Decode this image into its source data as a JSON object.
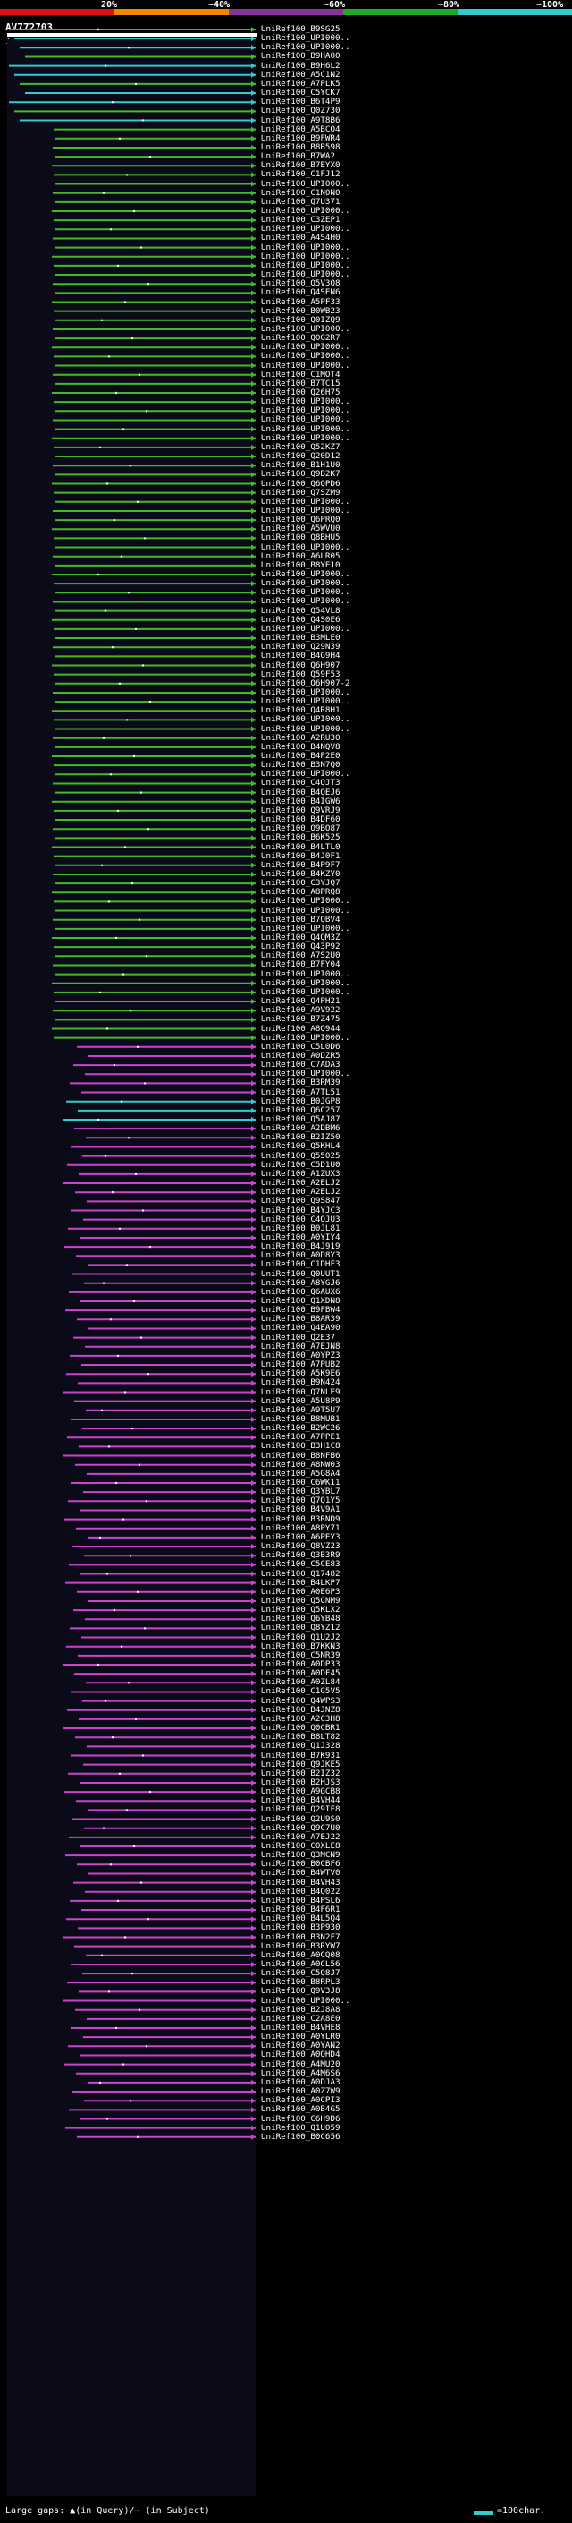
{
  "legend": {
    "labels": [
      "20%",
      "~40%",
      "~60%",
      "~80%",
      "~100%"
    ],
    "colors": {
      "c20": "#dd1111",
      "c40": "#ee8800",
      "c60": "#883399",
      "c80": "#22aa22",
      "c100": "#33cccc"
    }
  },
  "query": {
    "title": "AV772703",
    "start": "1",
    "end": "491"
  },
  "colors": {
    "pink": "#cc44cc",
    "green": "#44bb22",
    "cyan": "#33cccc",
    "purple_dark": "#661a66",
    "green_dark": "#2a5a12"
  },
  "hits": [
    "UniRef100_B9SG25",
    "UniRef100_UPI000..",
    "UniRef100_UPI000..",
    "UniRef100_B9HA00",
    "UniRef100_B9H6L2",
    "UniRef100_A5C1N2",
    "UniRef100_A7PLK5",
    "UniRef100_C5YCK7",
    "UniRef100_B6T4P9",
    "UniRef100_Q0Z730",
    "UniRef100_A9T8B6",
    "UniRef100_A5BCQ4",
    "UniRef100_B9FWR4",
    "UniRef100_B8B598",
    "UniRef100_B7WA2",
    "UniRef100_B7EYX0",
    "UniRef100_C1FJ12",
    "UniRef100_UPI000..",
    "UniRef100_C1N0N0",
    "UniRef100_Q7U371",
    "UniRef100_UPI000..",
    "UniRef100_C3ZEP1",
    "UniRef100_UPI000..",
    "UniRef100_A4S4H0",
    "UniRef100_UPI000..",
    "UniRef100_UPI000..",
    "UniRef100_UPI000..",
    "UniRef100_UPI000..",
    "UniRef100_Q5V3Q8",
    "UniRef100_Q4SEN6",
    "UniRef100_A5PF33",
    "UniRef100_B0WB23",
    "UniRef100_Q0IZQ9",
    "UniRef100_UPI000..",
    "UniRef100_Q0G2R7",
    "UniRef100_UPI000..",
    "UniRef100_UPI000..",
    "UniRef100_UPI000..",
    "UniRef100_C1MOT4",
    "UniRef100_B7TC15",
    "UniRef100_Q26H75",
    "UniRef100_UPI000..",
    "UniRef100_UPI000..",
    "UniRef100_UPI000..",
    "UniRef100_UPI000..",
    "UniRef100_UPI000..",
    "UniRef100_Q52KZ7",
    "UniRef100_Q20D12",
    "UniRef100_B1H1U0",
    "UniRef100_Q9B2K7",
    "UniRef100_Q6QPD6",
    "UniRef100_Q7SZM9",
    "UniRef100_UPI000..",
    "UniRef100_UPI000..",
    "UniRef100_Q6PRQ0",
    "UniRef100_A5WVU0",
    "UniRef100_Q8BHU5",
    "UniRef100_UPI000..",
    "UniRef100_A6LR05",
    "UniRef100_B8YE10",
    "UniRef100_UPI000..",
    "UniRef100_UPI000..",
    "UniRef100_UPI000..",
    "UniRef100_UPI000..",
    "UniRef100_Q54VL8",
    "UniRef100_Q4S0E6",
    "UniRef100_UPI000..",
    "UniRef100_B3MLE0",
    "UniRef100_Q29N39",
    "UniRef100_B4G9H4",
    "UniRef100_Q6H907",
    "UniRef100_Q59F53",
    "UniRef100_Q6H907-2",
    "UniRef100_UPI000..",
    "UniRef100_UPI000..",
    "UniRef100_Q4R8H1",
    "UniRef100_UPI000..",
    "UniRef100_UPI000..",
    "UniRef100_A2RU30",
    "UniRef100_B4NQV8",
    "UniRef100_B4P2E0",
    "UniRef100_B3N7Q0",
    "UniRef100_UPI000..",
    "UniRef100_C4QJT3",
    "UniRef100_B4QEJ6",
    "UniRef100_B4IGW6",
    "UniRef100_Q9VRJ9",
    "UniRef100_B4DF60",
    "UniRef100_Q9BQ87",
    "UniRef100_B6K525",
    "UniRef100_B4LTL0",
    "UniRef100_B4J0F1",
    "UniRef100_B4P9F7",
    "UniRef100_B4KZY0",
    "UniRef100_C3YJQ7",
    "UniRef100_A8PRQ8",
    "UniRef100_UPI000..",
    "UniRef100_UPI000..",
    "UniRef100_B7QBV4",
    "UniRef100_UPI000..",
    "UniRef100_Q4QM3Z",
    "UniRef100_Q43P92",
    "UniRef100_A7S2U0",
    "UniRef100_B7FY04",
    "UniRef100_UPI000..",
    "UniRef100_UPI000..",
    "UniRef100_UPI000..",
    "UniRef100_Q4PH21",
    "UniRef100_A9V922",
    "UniRef100_B7Z475",
    "UniRef100_A8Q944",
    "UniRef100_UPI000..",
    "UniRef100_C5L0D6",
    "UniRef100_A0DZR5",
    "UniRef100_C7ADA3",
    "UniRef100_UPI000..",
    "UniRef100_B3RM39",
    "UniRef100_A7TL51",
    "UniRef100_B0JGP8",
    "UniRef100_Q6C257",
    "UniRef100_Q5AJ87",
    "UniRef100_A2DBM6",
    "UniRef100_B2IZ50",
    "UniRef100_Q5KHL4",
    "UniRef100_Q55025",
    "UniRef100_C5D1U0",
    "UniRef100_A1ZUX3",
    "UniRef100_A2ELJ2",
    "UniRef100_A2ELJ2",
    "UniRef100_Q9S847",
    "UniRef100_B4YJC3",
    "UniRef100_C4QJU3",
    "UniRef100_B0JL81",
    "UniRef100_A0YIY4",
    "UniRef100_B4J919",
    "UniRef100_A0D8Y3",
    "UniRef100_C1DHF3",
    "UniRef100_Q0UUT1",
    "UniRef100_A8YGJ6",
    "UniRef100_Q6AUX6",
    "UniRef100_Q1XDN8",
    "UniRef100_B9FBW4",
    "UniRef100_B8AR39",
    "UniRef100_Q4EA90",
    "UniRef100_Q2E37",
    "UniRef100_A7EJN8",
    "UniRef100_A0YPZ3",
    "UniRef100_A7PUB2",
    "UniRef100_A5K9E6",
    "UniRef100_B9N424",
    "UniRef100_Q7NLE9",
    "UniRef100_A5U8P9",
    "UniRef100_A9T5U7",
    "UniRef100_B8MUB1",
    "UniRef100_B2WC26",
    "UniRef100_A7PPE1",
    "UniRef100_B3H1C8",
    "UniRef100_B8NFB6",
    "UniRef100_A8NW03",
    "UniRef100_A5G8A4",
    "UniRef100_C6WK11",
    "UniRef100_Q3YBL7",
    "UniRef100_Q7Q1Y5",
    "UniRef100_B4V9A1",
    "UniRef100_B3RND9",
    "UniRef100_A8PY71",
    "UniRef100_A6PEY3",
    "UniRef100_Q8VZ23",
    "UniRef100_Q3B3R9",
    "UniRef100_C5CE83",
    "UniRef100_Q17482",
    "UniRef100_B4LKP7",
    "UniRef100_A0E6P3",
    "UniRef100_Q5CNM9",
    "UniRef100_Q5KLX2",
    "UniRef100_Q6YB48",
    "UniRef100_Q8YZ12",
    "UniRef100_Q1U2J2",
    "UniRef100_B7KKN3",
    "UniRef100_C5NR39",
    "UniRef100_A0DP33",
    "UniRef100_A0DF45",
    "UniRef100_A0ZL84",
    "UniRef100_C1G5V5",
    "UniRef100_Q4WPS3",
    "UniRef100_B4JNZ8",
    "UniRef100_A2C3H8",
    "UniRef100_Q0CBR1",
    "UniRef100_B8LT82",
    "UniRef100_Q1J328",
    "UniRef100_B7K931",
    "UniRef100_Q9JKE5",
    "UniRef100_B2IZ32",
    "UniRef100_B2HJS3",
    "UniRef100_A9GCB8",
    "UniRef100_B4VH44",
    "UniRef100_Q29IF8",
    "UniRef100_Q2U9S0",
    "UniRef100_Q9C7U0",
    "UniRef100_A7EJ22",
    "UniRef100_C0XLE8",
    "UniRef100_Q3MCN9",
    "UniRef100_B0CBF6",
    "UniRef100_B4WTV0",
    "UniRef100_B4VH43",
    "UniRef100_B4Q022",
    "UniRef100_B4PSL6",
    "UniRef100_B4F6R1",
    "UniRef100_B4L5Q4",
    "UniRef100_B3P930",
    "UniRef100_B3N2F7",
    "UniRef100_B3RYW7",
    "UniRef100_A0CQ08",
    "UniRef100_A0CL56",
    "UniRef100_C5Q8J7",
    "UniRef100_B8RPL3",
    "UniRef100_Q9V3J8",
    "UniRef100_UPI000..",
    "UniRef100_B2J8A8",
    "UniRef100_C2A8E0",
    "UniRef100_B4VHE8",
    "UniRef100_A0YLR0",
    "UniRef100_A0YAN2",
    "UniRef100_A0QHD4",
    "UniRef100_A4MU20",
    "UniRef100_A4M6S6",
    "UniRef100_A0DJA3",
    "UniRef100_A0Z7W9",
    "UniRef100_A0CPI3",
    "UniRef100_A0B4G5",
    "UniRef100_C6H9D6",
    "UniRef100_Q1U059",
    "UniRef100_B0C656"
  ],
  "footer": {
    "text": "Large gaps: ▲(in Query)/~ (in Subject)",
    "scale_text": "=100char."
  }
}
